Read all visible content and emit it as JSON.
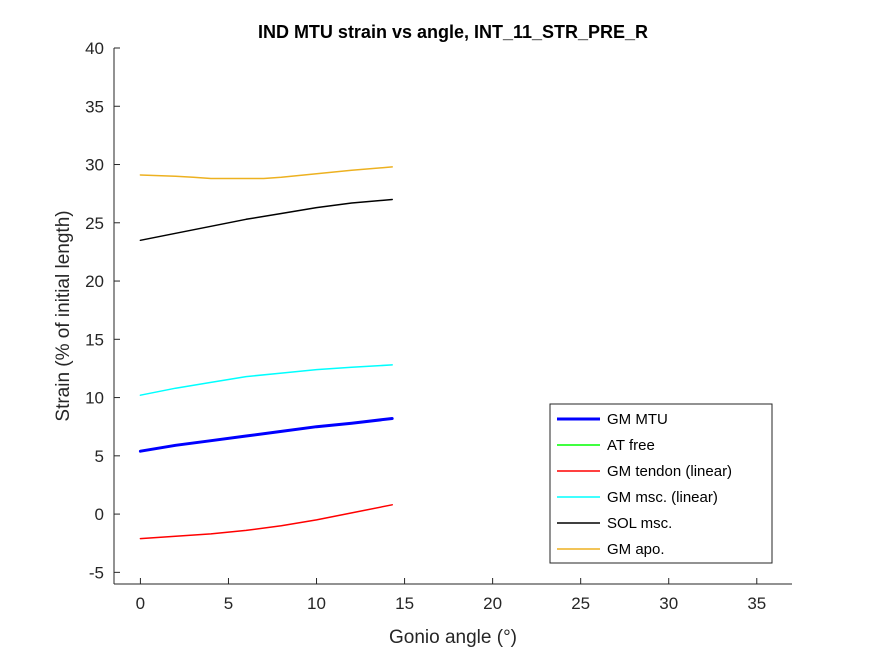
{
  "chart_data": {
    "type": "line",
    "title": "IND MTU strain vs angle, INT_11_STR_PRE_R",
    "xlabel": "Gonio angle (°)",
    "ylabel": "Strain (% of initial length)",
    "xlim": [
      -1.5,
      37
    ],
    "ylim": [
      -6,
      40
    ],
    "xticks": [
      0,
      5,
      10,
      15,
      20,
      25,
      30,
      35
    ],
    "yticks": [
      -5,
      0,
      5,
      10,
      15,
      20,
      25,
      30,
      35,
      40
    ],
    "grid": false,
    "legend_position": "bottom-right",
    "series": [
      {
        "name": "GM MTU",
        "color": "#0000ff",
        "line_width": "thick",
        "x": [
          0,
          2,
          4,
          6,
          8,
          10,
          12,
          14.3
        ],
        "y": [
          5.4,
          5.9,
          6.3,
          6.7,
          7.1,
          7.5,
          7.8,
          8.2
        ]
      },
      {
        "name": "AT free",
        "color": "#00ff00",
        "x": [],
        "y": []
      },
      {
        "name": "GM tendon (linear)",
        "color": "#ff0000",
        "x": [
          0,
          2,
          4,
          6,
          8,
          10,
          12,
          14.3
        ],
        "y": [
          -2.1,
          -1.9,
          -1.7,
          -1.4,
          -1.0,
          -0.5,
          0.1,
          0.8
        ]
      },
      {
        "name": "GM msc. (linear)",
        "color": "#00ffff",
        "x": [
          0,
          2,
          4,
          6,
          8,
          10,
          12,
          14.3
        ],
        "y": [
          10.2,
          10.8,
          11.3,
          11.8,
          12.1,
          12.4,
          12.6,
          12.8
        ]
      },
      {
        "name": "SOL msc.",
        "color": "#000000",
        "x": [
          0,
          2,
          4,
          6,
          8,
          10,
          12,
          14.3
        ],
        "y": [
          23.5,
          24.1,
          24.7,
          25.3,
          25.8,
          26.3,
          26.7,
          27.0
        ]
      },
      {
        "name": "GM apo.",
        "color": "#edb120",
        "x": [
          0,
          2,
          3,
          4,
          6,
          7,
          8,
          10,
          12,
          14.3
        ],
        "y": [
          29.1,
          29.0,
          28.9,
          28.8,
          28.8,
          28.8,
          28.9,
          29.2,
          29.5,
          29.8
        ]
      }
    ]
  }
}
